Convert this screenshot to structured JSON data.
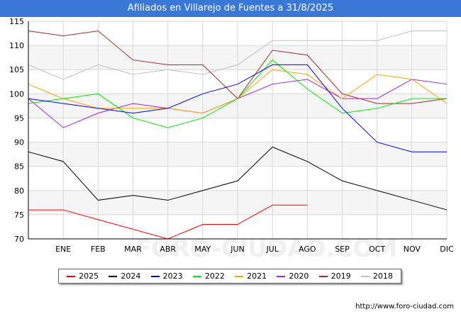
{
  "title": "Afiliados en Villarejo de Fuentes a 31/8/2025",
  "footer_url": "http://www.foro-ciudad.com",
  "watermark": "FORO-CIUDAD.COM",
  "colors": {
    "title_bar": "#3a78d8",
    "band_light": "#f5f5f5",
    "grid": "#d8d8d8"
  },
  "chart_data": {
    "type": "line",
    "title": "Afiliados en Villarejo de Fuentes a 31/8/2025",
    "xlabel": "",
    "ylabel": "",
    "x_labels": [
      "",
      "ENE",
      "FEB",
      "MAR",
      "ABR",
      "MAY",
      "JUN",
      "JUL",
      "AGO",
      "SEP",
      "OCT",
      "NOV",
      "DIC"
    ],
    "ylim": [
      70,
      115
    ],
    "yticks": [
      70,
      75,
      80,
      85,
      90,
      95,
      100,
      105,
      110,
      115
    ],
    "grid": true,
    "legend_position": "bottom",
    "series": [
      {
        "name": "2025",
        "color": "#ff0000",
        "values": [
          76,
          76,
          74,
          72,
          70,
          73,
          73,
          77,
          77,
          null,
          null,
          null,
          null
        ]
      },
      {
        "name": "2024",
        "color": "#000000",
        "values": [
          88,
          86,
          78,
          79,
          78,
          80,
          82,
          89,
          86,
          82,
          80,
          78,
          76
        ]
      },
      {
        "name": "2023",
        "color": "#0000ff",
        "values": [
          99,
          98,
          97,
          96,
          97,
          100,
          102,
          106,
          106,
          97,
          90,
          88,
          88
        ]
      },
      {
        "name": "2022",
        "color": "#00ee00",
        "values": [
          98,
          99,
          100,
          95,
          93,
          95,
          99,
          107,
          101,
          96,
          97,
          99,
          99
        ]
      },
      {
        "name": "2021",
        "color": "#ffa500",
        "values": [
          102,
          99,
          97,
          97,
          97,
          96,
          99,
          105,
          104,
          99,
          104,
          103,
          98
        ]
      },
      {
        "name": "2020",
        "color": "#a020f0",
        "values": [
          99,
          93,
          96,
          98,
          97,
          96,
          99,
          102,
          103,
          99,
          99,
          103,
          102
        ]
      },
      {
        "name": "2019",
        "color": "#a52a2a",
        "values": [
          113,
          112,
          113,
          107,
          106,
          106,
          99,
          109,
          108,
          100,
          98,
          98,
          99
        ]
      },
      {
        "name": "2018",
        "color": "#c0c0c0",
        "values": [
          106,
          103,
          106,
          104,
          105,
          104,
          106,
          111,
          111,
          111,
          111,
          113,
          113
        ]
      }
    ]
  }
}
